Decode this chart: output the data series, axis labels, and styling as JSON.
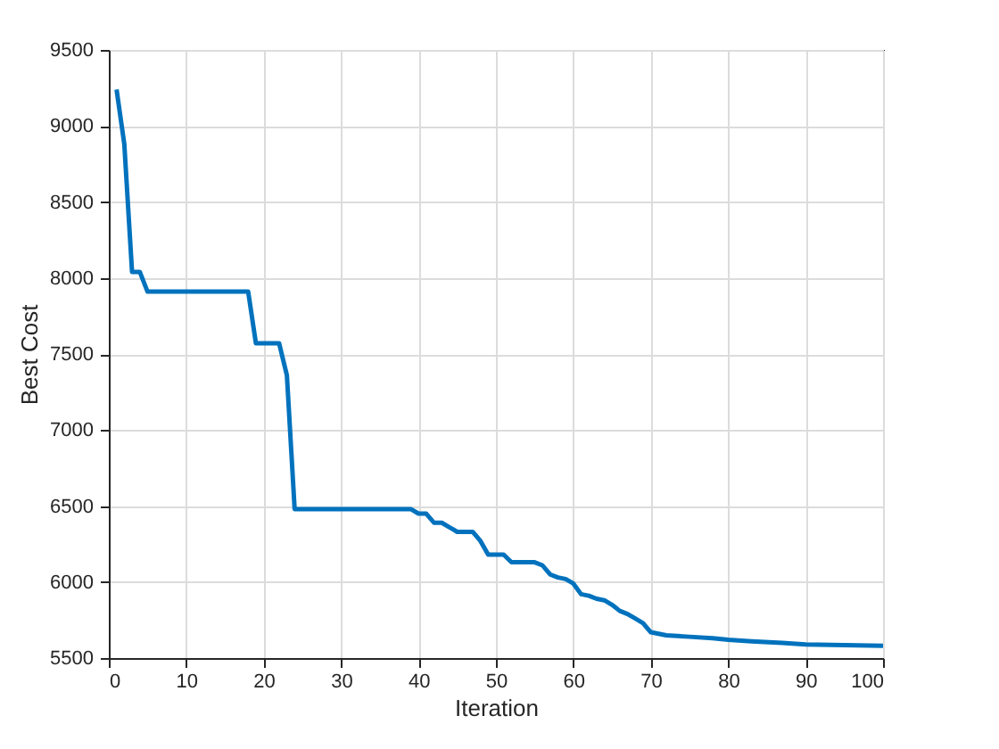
{
  "chart_data": {
    "type": "line",
    "xlabel": "Iteration",
    "ylabel": "Best Cost",
    "x": [
      1,
      2,
      3,
      4,
      5,
      18,
      19,
      22,
      23,
      24,
      39,
      40,
      41,
      42,
      43,
      44,
      45,
      47,
      48,
      49,
      51,
      52,
      55,
      56,
      57,
      58,
      59,
      60,
      61,
      62,
      63,
      64,
      65,
      66,
      67,
      68,
      69,
      70,
      72,
      75,
      78,
      80,
      83,
      87,
      90,
      100
    ],
    "series": [
      {
        "color": "#0072bd",
        "values": [
          9240,
          8880,
          8040,
          8040,
          7910,
          7910,
          7570,
          7570,
          7360,
          6480,
          6480,
          6450,
          6450,
          6390,
          6390,
          6360,
          6330,
          6330,
          6270,
          6180,
          6180,
          6130,
          6130,
          6110,
          6050,
          6030,
          6020,
          5990,
          5920,
          5910,
          5890,
          5880,
          5850,
          5810,
          5790,
          5760,
          5730,
          5670,
          5650,
          5640,
          5630,
          5620,
          5610,
          5600,
          5590,
          5580
        ]
      }
    ],
    "xlim": [
      0,
      100
    ],
    "xticks": [
      0,
      10,
      20,
      30,
      40,
      50,
      60,
      70,
      80,
      90,
      100
    ],
    "ylim": [
      5500,
      9500
    ],
    "yticks": [
      5500,
      6000,
      6500,
      7000,
      7500,
      8000,
      8500,
      9000,
      9500
    ],
    "grid": true,
    "legend": false,
    "marker": "none",
    "line_style": "solid"
  }
}
